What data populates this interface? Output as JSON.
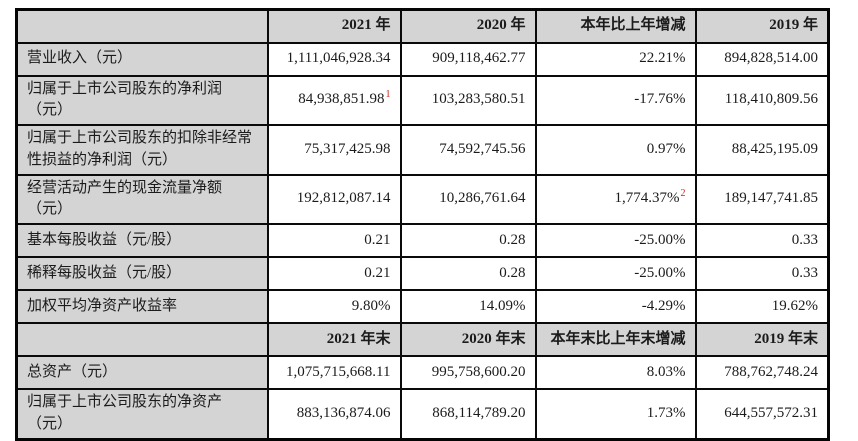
{
  "page": {
    "background": "#ffffff",
    "text_color": "#1b1b1b",
    "header_fill": "#d4d4d4",
    "label_fill": "#d4d4d4",
    "border_color": "#0a0a0a",
    "footnote_color": "#cc2418"
  },
  "table": {
    "description": "financial-summary-table",
    "rows": [
      {
        "type": "header",
        "cells": [
          "",
          "2021 年",
          "2020 年",
          "本年比上年增减",
          "2019 年"
        ]
      },
      {
        "type": "data",
        "cells": [
          "营业收入（元）",
          "1,111,046,928.34",
          "909,118,462.77",
          "22.21%",
          "894,828,514.00"
        ]
      },
      {
        "type": "data",
        "cells": [
          "归属于上市公司股东的净利润（元）",
          {
            "text": "84,938,851.98",
            "sup": "1"
          },
          "103,283,580.51",
          "-17.76%",
          "118,410,809.56"
        ]
      },
      {
        "type": "data",
        "cells": [
          "归属于上市公司股东的扣除非经常性损益的净利润（元）",
          "75,317,425.98",
          "74,592,745.56",
          "0.97%",
          "88,425,195.09"
        ]
      },
      {
        "type": "data",
        "cells": [
          "经营活动产生的现金流量净额（元）",
          "192,812,087.14",
          "10,286,761.64",
          {
            "text": "1,774.37%",
            "sup": "2"
          },
          "189,147,741.85"
        ]
      },
      {
        "type": "data",
        "cells": [
          "基本每股收益（元/股）",
          "0.21",
          "0.28",
          "-25.00%",
          "0.33"
        ]
      },
      {
        "type": "data",
        "cells": [
          "稀释每股收益（元/股）",
          "0.21",
          "0.28",
          "-25.00%",
          "0.33"
        ]
      },
      {
        "type": "data",
        "cells": [
          "加权平均净资产收益率",
          "9.80%",
          "14.09%",
          "-4.29%",
          "19.62%"
        ]
      },
      {
        "type": "header",
        "cells": [
          "",
          "2021 年末",
          "2020 年末",
          "本年末比上年末增减",
          "2019 年末"
        ]
      },
      {
        "type": "data",
        "cells": [
          "总资产（元）",
          "1,075,715,668.11",
          "995,758,600.20",
          "8.03%",
          "788,762,748.24"
        ]
      },
      {
        "type": "data",
        "cells": [
          "归属于上市公司股东的净资产（元）",
          "883,136,874.06",
          "868,114,789.20",
          "1.73%",
          "644,557,572.31"
        ]
      }
    ]
  }
}
